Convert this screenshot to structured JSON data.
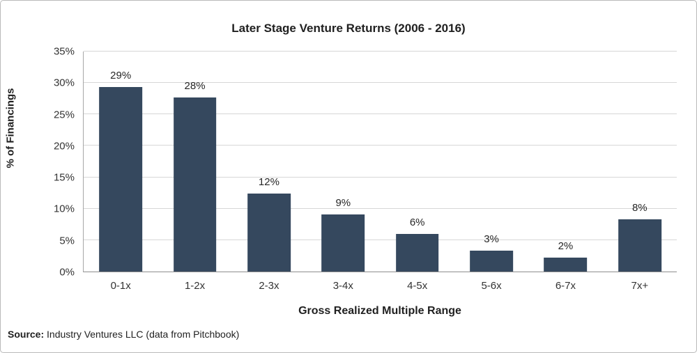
{
  "chart_data": {
    "type": "bar",
    "title": "Later Stage Venture Returns (2006 - 2016)",
    "xlabel": "Gross Realized Multiple Range",
    "ylabel": "% of Financings",
    "categories": [
      "0-1x",
      "1-2x",
      "2-3x",
      "3-4x",
      "4-5x",
      "5-6x",
      "6-7x",
      "7x+"
    ],
    "values": [
      29.3,
      27.7,
      12.4,
      9.1,
      6.0,
      3.3,
      2.2,
      8.3
    ],
    "value_labels": [
      "29%",
      "28%",
      "12%",
      "9%",
      "6%",
      "3%",
      "2%",
      "8%"
    ],
    "ylim": [
      0,
      35
    ],
    "ytick_step": 5,
    "ytick_labels": [
      "0%",
      "5%",
      "10%",
      "15%",
      "20%",
      "25%",
      "30%",
      "35%"
    ],
    "grid": true,
    "legend": "none",
    "bar_color": "#35485e"
  },
  "source": {
    "prefix": "Source:",
    "text": " Industry Ventures LLC (data from Pitchbook)"
  }
}
